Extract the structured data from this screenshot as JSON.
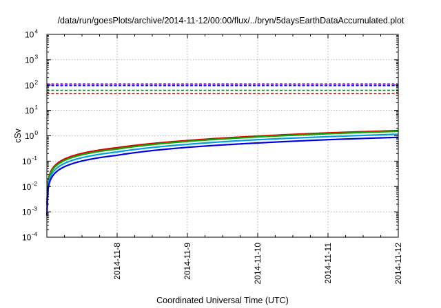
{
  "chart_data": {
    "type": "line",
    "title": "/data/run/goesPlots/archive/2014-11-12/00:00/flux/../bryn/5daysEarthDataAccumulated.plot",
    "xlabel": "Coordinated Universal Time (UTC)",
    "ylabel": "cSv",
    "x_scale": "time",
    "y_scale": "log",
    "xlim": [
      "2014-11-07",
      "2014-11-12"
    ],
    "ylim_exponents": [
      -4,
      4
    ],
    "y_tick_base": "10",
    "y_tick_exponents": [
      "-4",
      "-3",
      "-2",
      "-1",
      "0",
      "1",
      "2",
      "3",
      "4"
    ],
    "x_ticks": [
      "2014-11-8",
      "2014-11-9",
      "2014-11-10",
      "2014-11-11",
      "2014-11-12"
    ],
    "x_tick_dates": [
      "2014-11-08",
      "2014-11-09",
      "2014-11-10",
      "2014-11-11",
      "2014-11-12"
    ],
    "grid": true,
    "legend": "none",
    "x": [
      "2014-11-07",
      "2014-11-08",
      "2014-11-09",
      "2014-11-10",
      "2014-11-11",
      "2014-11-12"
    ],
    "series": [
      {
        "color": "#e00000",
        "style": "solid",
        "values": [
          0.002,
          0.34,
          0.65,
          0.97,
          1.3,
          1.6
        ]
      },
      {
        "color": "#00b000",
        "style": "solid",
        "values": [
          0.0018,
          0.3,
          0.6,
          0.9,
          1.2,
          1.5
        ]
      },
      {
        "color": "#00a0e0",
        "style": "solid",
        "values": [
          0.0012,
          0.23,
          0.46,
          0.7,
          0.92,
          1.15
        ]
      },
      {
        "color": "#0000e0",
        "style": "solid",
        "values": [
          0.0007,
          0.17,
          0.35,
          0.52,
          0.7,
          0.87
        ]
      },
      {
        "color": "#e00000",
        "style": "dashed",
        "values": [
          47,
          47,
          47,
          47,
          47,
          47
        ]
      },
      {
        "color": "#00b000",
        "style": "dashed",
        "values": [
          62,
          62,
          62,
          62,
          62,
          62
        ]
      },
      {
        "color": "#0000e0",
        "style": "dashed",
        "values": [
          95,
          95,
          95,
          95,
          95,
          95
        ]
      },
      {
        "color": "#8000c0",
        "style": "dashed",
        "values": [
          110,
          110,
          110,
          110,
          110,
          110
        ]
      }
    ]
  }
}
